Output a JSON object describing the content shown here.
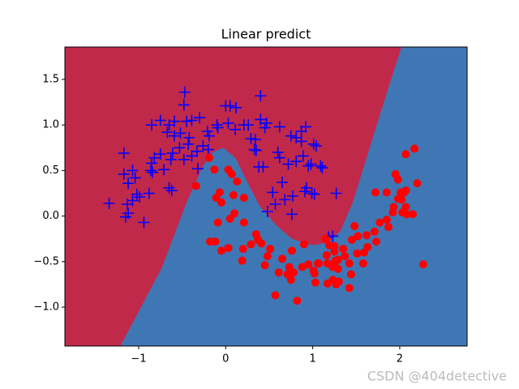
{
  "chart_data": {
    "type": "scatter",
    "title": "Linear predict",
    "xlim": [
      -1.848,
      2.774
    ],
    "ylim": [
      -1.427,
      1.856
    ],
    "xticks": [
      {
        "value": -1,
        "label": "−1"
      },
      0,
      1,
      2
    ],
    "yticks": [
      {
        "value": -1,
        "label": "−1.0"
      },
      {
        "value": -0.5,
        "label": "−0.5"
      },
      {
        "value": 0,
        "label": "0.0"
      },
      0.5,
      {
        "value": 1,
        "label": "1.0"
      },
      1.5
    ],
    "region_colors": [
      "#c1294a",
      "#3f77b4"
    ],
    "decision_boundary": {
      "x": [
        -1.21,
        -0.73,
        -0.45,
        -0.26,
        -0.15,
        -0.03,
        0.11,
        0.25,
        0.39,
        0.58,
        0.76,
        1.0,
        1.18,
        1.32,
        1.46,
        1.69,
        1.88,
        2.02
      ],
      "y": [
        -1.427,
        -0.56,
        0.15,
        0.55,
        0.7,
        0.75,
        0.64,
        0.37,
        0.11,
        -0.1,
        -0.25,
        -0.32,
        -0.29,
        -0.16,
        0.15,
        0.86,
        1.44,
        1.856
      ]
    },
    "series": [
      {
        "marker": "plus",
        "color": "#0000ff",
        "x": [
          -0.47,
          0.05,
          0.12,
          0.4,
          0.0,
          -0.48,
          -0.75,
          -0.85,
          -0.65,
          -0.59,
          -0.39,
          -0.3,
          -0.19,
          -0.1,
          0.03,
          0.21,
          0.26,
          0.4,
          0.47,
          0.45,
          0.62,
          0.75,
          0.87,
          0.92,
          0.87,
          1.01,
          1.04,
          -0.67,
          -0.59,
          -0.52,
          -0.42,
          -0.26,
          -0.2,
          -0.33,
          -0.39,
          -0.48,
          -0.63,
          -0.71,
          -0.85,
          -0.82,
          -0.75,
          -0.61,
          -0.53,
          -0.43,
          0.29,
          0.34,
          0.35,
          0.33,
          0.38,
          0.6,
          0.62,
          0.72,
          0.81,
          0.89,
          0.95,
          0.98,
          1.09,
          1.11,
          0.65,
          0.93,
          0.99,
          0.91,
          1.02,
          1.27,
          0.54,
          0.77,
          0.68,
          0.76,
          0.48,
          -1.17,
          -1.17,
          -1.07,
          -1.12,
          -1.07,
          -1.02,
          -0.99,
          -0.88,
          -0.86,
          -0.65,
          -0.62,
          -1.34,
          -1.13,
          -1.12,
          -1.15,
          -0.94,
          1.23,
          1.18,
          0.57,
          0.43,
          -0.32,
          0.81,
          -0.45,
          -0.21,
          -0.09,
          0.11,
          -1.04,
          -0.84
        ],
        "y": [
          1.36,
          1.21,
          1.19,
          1.32,
          1.21,
          1.22,
          1.05,
          1.0,
          1.0,
          1.04,
          1.05,
          1.08,
          0.88,
          1.0,
          1.02,
          1.0,
          1.0,
          1.06,
          1.02,
          0.97,
          0.98,
          0.88,
          0.93,
          0.98,
          0.82,
          0.79,
          0.77,
          0.92,
          0.88,
          0.91,
          0.86,
          0.77,
          0.73,
          0.71,
          0.66,
          0.62,
          0.62,
          0.51,
          0.58,
          0.64,
          0.68,
          0.69,
          0.75,
          0.79,
          0.85,
          0.84,
          0.72,
          0.73,
          0.54,
          0.7,
          0.64,
          0.57,
          0.6,
          0.66,
          0.55,
          0.57,
          0.55,
          0.53,
          0.37,
          0.31,
          0.25,
          0.27,
          0.24,
          0.25,
          0.26,
          0.22,
          0.18,
          0.02,
          0.05,
          0.69,
          0.46,
          0.5,
          0.36,
          0.17,
          0.24,
          0.21,
          0.25,
          0.5,
          0.31,
          0.28,
          0.14,
          0.13,
          0.03,
          -0.01,
          -0.07,
          -0.22,
          -0.23,
          0.13,
          0.54,
          0.52,
          0.86,
          1.04,
          0.93,
          0.97,
          0.95,
          0.42,
          0.48
        ]
      },
      {
        "marker": "circle",
        "color": "#ff0000",
        "x": [
          -0.19,
          -0.13,
          0.03,
          0.07,
          -0.34,
          0.13,
          -0.07,
          -0.11,
          0.09,
          0.21,
          -0.05,
          0.1,
          0.05,
          0.21,
          -0.09,
          -0.12,
          -0.18,
          0.03,
          -0.05,
          0.2,
          0.19,
          0.29,
          0.35,
          0.37,
          0.41,
          0.48,
          0.45,
          0.51,
          0.76,
          0.71,
          0.78,
          0.75,
          0.88,
          0.95,
          1.02,
          1.07,
          1.16,
          1.17,
          1.23,
          1.29,
          1.25,
          1.23,
          1.27,
          1.29,
          1.3,
          1.42,
          1.44,
          1.42,
          1.58,
          1.63,
          1.59,
          1.62,
          1.71,
          1.73,
          1.77,
          1.85,
          1.92,
          1.93,
          1.98,
          2.01,
          2.05,
          2.07,
          2.07,
          2.03,
          2.08,
          2.02,
          2.15,
          1.95,
          1.98,
          2.07,
          2.17,
          2.2,
          2.27,
          0.57,
          0.82,
          1.03,
          1.17,
          1.45,
          1.48,
          1.52,
          1.72,
          1.85,
          1.87,
          1.35,
          1.25,
          1.26,
          1.06,
          1.01,
          0.65,
          0.61,
          0.73,
          0.9,
          1.15,
          1.19,
          1.25,
          1.37,
          1.51
        ],
        "y": [
          0.64,
          0.51,
          0.51,
          0.46,
          0.33,
          0.38,
          0.26,
          0.2,
          0.23,
          0.2,
          0.15,
          0.03,
          -0.03,
          -0.07,
          -0.07,
          -0.28,
          -0.28,
          -0.35,
          -0.38,
          -0.36,
          -0.49,
          -0.31,
          -0.2,
          -0.26,
          -0.3,
          -0.44,
          -0.54,
          -0.36,
          -0.38,
          -0.64,
          -0.62,
          -0.7,
          -0.56,
          -0.53,
          -0.63,
          -0.52,
          -0.43,
          -0.52,
          -0.56,
          -0.48,
          -0.54,
          -0.7,
          -0.75,
          -0.58,
          -0.72,
          -0.79,
          -0.64,
          -0.52,
          -0.52,
          -0.34,
          -0.4,
          -0.21,
          -0.17,
          -0.28,
          -0.07,
          -0.04,
          0.04,
          0.1,
          0.19,
          0.26,
          0.26,
          0.28,
          0.1,
          0.04,
          0.02,
          0.18,
          0.02,
          0.46,
          0.4,
          0.68,
          0.74,
          0.36,
          -0.53,
          -0.87,
          -0.93,
          -0.73,
          -0.74,
          -0.26,
          -0.11,
          -0.22,
          0.26,
          0.26,
          -0.12,
          -0.36,
          -0.39,
          -0.49,
          -0.52,
          -0.6,
          -0.47,
          -0.62,
          -0.56,
          -0.31,
          -0.25,
          -0.32,
          -0.33,
          -0.44,
          -0.41
        ]
      }
    ],
    "watermark": "CSDN @404detective"
  }
}
